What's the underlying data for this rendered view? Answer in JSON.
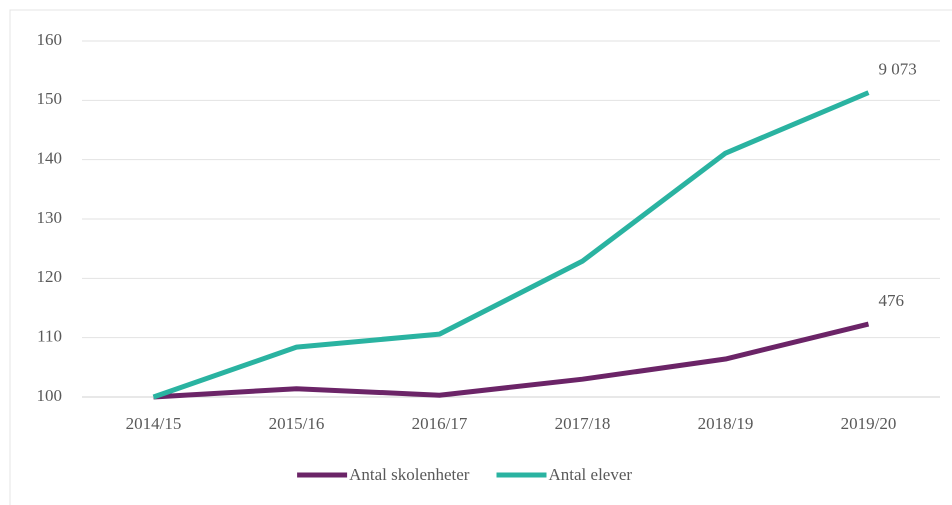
{
  "chart_data": {
    "type": "line",
    "categories": [
      "2014/15",
      "2015/16",
      "2016/17",
      "2017/18",
      "2018/19",
      "2019/20"
    ],
    "series": [
      {
        "name": "Antal skolenheter",
        "color": "#6b2467",
        "values": [
          100,
          101.4,
          100.3,
          103,
          106.4,
          112.3
        ],
        "end_label": "476"
      },
      {
        "name": "Antal elever",
        "color": "#2ab3a1",
        "values": [
          100,
          108.4,
          110.6,
          122.9,
          141.1,
          151.3
        ],
        "end_label": "9 073"
      }
    ],
    "ylim": [
      100,
      160
    ],
    "yticks": [
      100,
      110,
      120,
      130,
      140,
      150,
      160
    ],
    "grid": true,
    "legend": "bottom"
  }
}
